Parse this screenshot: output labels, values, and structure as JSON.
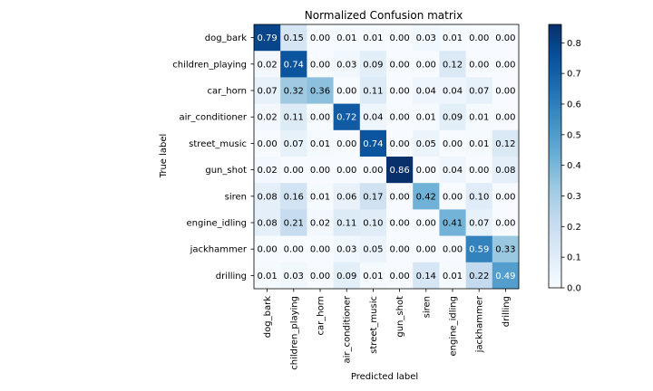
{
  "chart_data": {
    "type": "heatmap",
    "title": "Normalized Confusion matrix",
    "xlabel": "Predicted label",
    "ylabel": "True label",
    "categories": [
      "dog_bark",
      "children_playing",
      "car_horn",
      "air_conditioner",
      "street_music",
      "gun_shot",
      "siren",
      "engine_idling",
      "jackhammer",
      "drilling"
    ],
    "values": [
      [
        0.79,
        0.15,
        0.0,
        0.01,
        0.01,
        0.0,
        0.03,
        0.01,
        0.0,
        0.0
      ],
      [
        0.02,
        0.74,
        0.0,
        0.03,
        0.09,
        0.0,
        0.0,
        0.12,
        0.0,
        0.0
      ],
      [
        0.07,
        0.32,
        0.36,
        0.0,
        0.11,
        0.0,
        0.04,
        0.04,
        0.07,
        0.0
      ],
      [
        0.02,
        0.11,
        0.0,
        0.72,
        0.04,
        0.0,
        0.01,
        0.09,
        0.01,
        0.0
      ],
      [
        0.0,
        0.07,
        0.01,
        0.0,
        0.74,
        0.0,
        0.05,
        0.0,
        0.01,
        0.12
      ],
      [
        0.02,
        0.0,
        0.0,
        0.0,
        0.0,
        0.86,
        0.0,
        0.04,
        0.0,
        0.08
      ],
      [
        0.08,
        0.16,
        0.01,
        0.06,
        0.17,
        0.0,
        0.42,
        0.0,
        0.1,
        0.0
      ],
      [
        0.08,
        0.21,
        0.02,
        0.11,
        0.1,
        0.0,
        0.0,
        0.41,
        0.07,
        0.0
      ],
      [
        0.0,
        0.0,
        0.0,
        0.03,
        0.05,
        0.0,
        0.0,
        0.0,
        0.59,
        0.33
      ],
      [
        0.01,
        0.03,
        0.0,
        0.09,
        0.01,
        0.0,
        0.14,
        0.01,
        0.22,
        0.49
      ]
    ],
    "colormap": "Blues",
    "colorbar": {
      "ticks": [
        "0.0",
        "0.1",
        "0.2",
        "0.3",
        "0.4",
        "0.5",
        "0.6",
        "0.7",
        "0.8"
      ],
      "range": [
        0,
        0.86
      ]
    },
    "colors": {
      "low": "#f7fbff",
      "high": "#08306b"
    }
  }
}
